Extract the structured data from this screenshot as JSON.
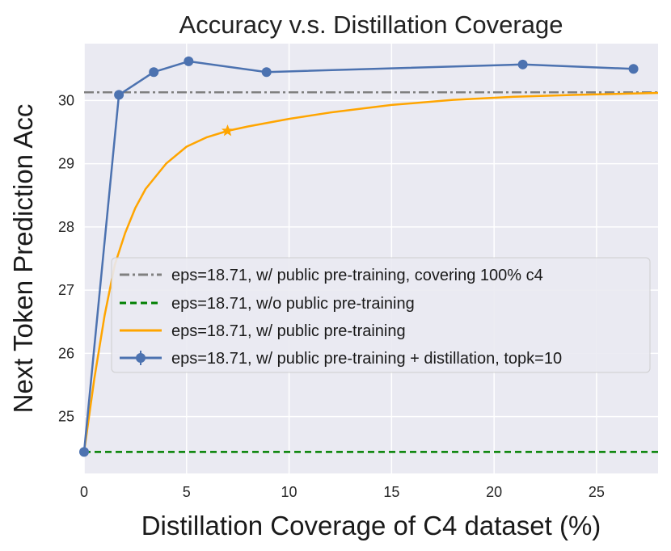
{
  "chart_data": {
    "type": "line",
    "title": "Accuracy v.s. Distillation Coverage",
    "xlabel": "Distillation Coverage of C4 dataset (%)",
    "ylabel": "Next Token Prediction Acc",
    "xlim": [
      0,
      28
    ],
    "ylim": [
      24.1,
      30.9
    ],
    "xticks": [
      "0",
      "5",
      "10",
      "15",
      "20",
      "25"
    ],
    "yticks": [
      "25",
      "26",
      "27",
      "28",
      "29",
      "30"
    ],
    "grid": true,
    "legend_loc": "center-right",
    "series": [
      {
        "name": "eps=18.71, w/ public pre-training, covering 100% c4",
        "style": "dash-dot",
        "color": "#808080",
        "x": [
          0,
          28
        ],
        "y": [
          30.13,
          30.13
        ]
      },
      {
        "name": "eps=18.71, w/o public pre-training",
        "style": "dashed",
        "color": "#008000",
        "x": [
          0,
          28
        ],
        "y": [
          24.44,
          24.44
        ]
      },
      {
        "name": "eps=18.71, w/ public pre-training",
        "style": "solid",
        "color": "#FFA500",
        "x": [
          0,
          0.5,
          1,
          1.5,
          2,
          2.5,
          3,
          4,
          5,
          6,
          7,
          8,
          10,
          12,
          15,
          18,
          21,
          24,
          28
        ],
        "y": [
          24.44,
          25.6,
          26.6,
          27.4,
          27.9,
          28.3,
          28.6,
          29.0,
          29.27,
          29.42,
          29.52,
          29.59,
          29.71,
          29.81,
          29.93,
          30.01,
          30.06,
          30.09,
          30.12
        ],
        "marker_point": {
          "x": 7.0,
          "y": 29.52,
          "marker": "star"
        }
      },
      {
        "name": "eps=18.71, w/ public pre-training + distillation, topk=10",
        "style": "solid-marker",
        "color": "#4C72B0",
        "x": [
          0,
          1.7,
          3.4,
          5.1,
          8.9,
          21.4,
          26.8
        ],
        "y": [
          24.44,
          30.09,
          30.45,
          30.62,
          30.45,
          30.57,
          30.5
        ]
      }
    ]
  }
}
